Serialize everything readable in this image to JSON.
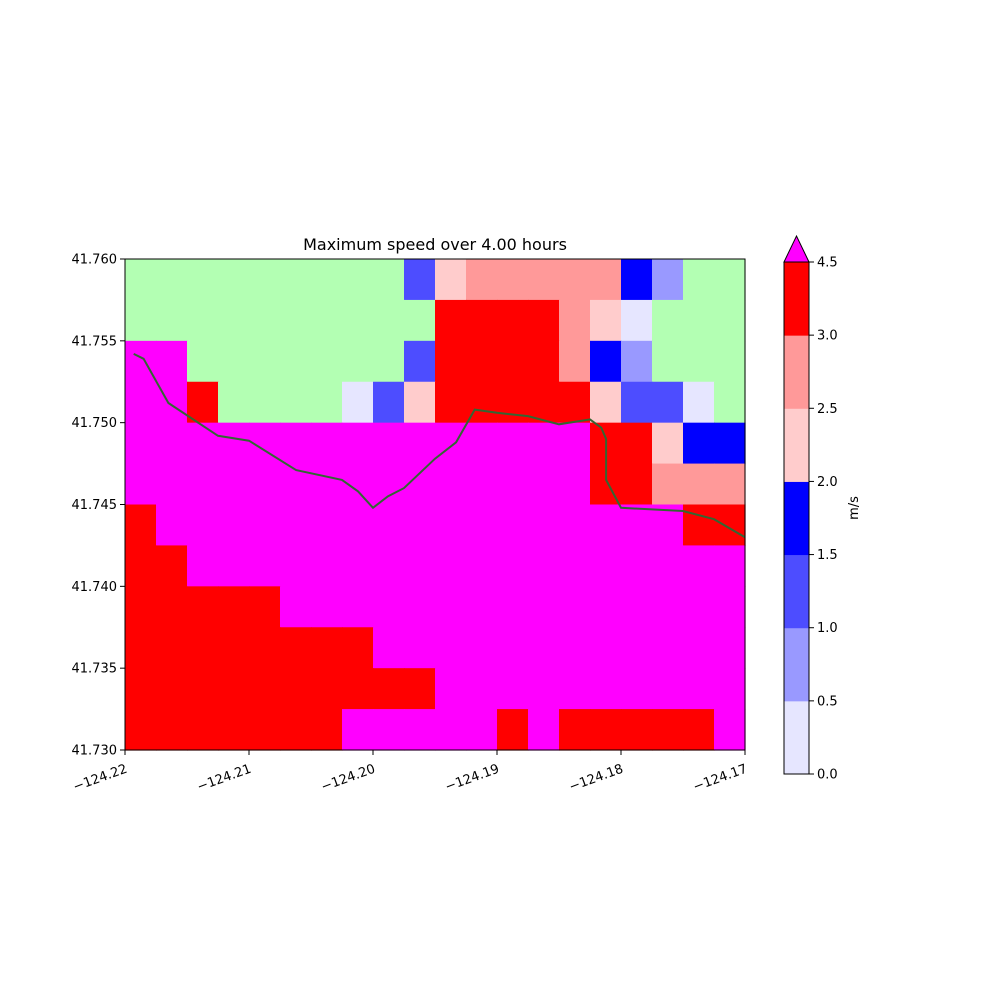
{
  "chart_data": {
    "type": "heatmap",
    "title": "Maximum speed over 4.00 hours",
    "xlabel": "",
    "ylabel": "",
    "xlim": [
      -124.22,
      -124.17
    ],
    "ylim": [
      41.73,
      41.76
    ],
    "x_ticks": [
      "−124.22",
      "−124.21",
      "−124.20",
      "−124.19",
      "−124.18",
      "−124.17"
    ],
    "x_tick_values": [
      -124.22,
      -124.21,
      -124.2,
      -124.19,
      -124.18,
      -124.17
    ],
    "y_ticks": [
      "41.730",
      "41.735",
      "41.740",
      "41.745",
      "41.750",
      "41.755",
      "41.760"
    ],
    "y_tick_values": [
      41.73,
      41.735,
      41.74,
      41.745,
      41.75,
      41.755,
      41.76
    ],
    "grid": false,
    "x_edges": [
      -124.22,
      -124.2175,
      -124.215,
      -124.2075,
      -124.2025,
      -124.2,
      -124.195,
      -124.19,
      -124.1875,
      -124.185,
      -124.1825,
      -124.18,
      -124.1775,
      -124.175,
      -124.1725,
      -124.17
    ],
    "y_edges": [
      41.76,
      41.7575,
      41.755,
      41.7525,
      41.75,
      41.7475,
      41.745,
      41.7425,
      41.74,
      41.7375,
      41.735,
      41.7325,
      41.73
    ],
    "grid_cells": [
      [
        "land",
        "land",
        "land",
        "land",
        "land",
        "land",
        "land",
        "land",
        "land",
        "land",
        "land",
        "land",
        "land",
        "land",
        "land",
        "land",
        "land",
        "land",
        "land",
        "land",
        "land",
        "land",
        "land",
        "land",
        "land",
        "land",
        "land",
        "land",
        "land",
        "land",
        "land",
        "land",
        "land",
        "land",
        "land",
        "land",
        "land",
        "land",
        "land",
        "land",
        "land",
        "land",
        "land",
        "land",
        "land",
        "land",
        "land",
        "land",
        "land",
        "land",
        "land",
        "land",
        "land",
        "land",
        "land",
        "land",
        "land",
        "land",
        "land",
        "land",
        "land",
        "land",
        "land",
        "land",
        "land",
        "land",
        "land",
        "land",
        "land",
        "land",
        "land",
        "land",
        "land",
        "land",
        "land",
        "land",
        "land",
        "land",
        "land",
        "land",
        "land",
        "land",
        "land",
        "land",
        "land",
        "land",
        "land",
        "land",
        "land",
        "land",
        "land",
        "land",
        "land",
        "land",
        "land",
        "land",
        "land",
        "land",
        "land",
        "land"
      ]
    ],
    "cells": [
      {
        "row": 0,
        "col_start": 0,
        "col_end": 8,
        "value": "land"
      },
      {
        "row": 0,
        "col": 8,
        "value": 1.25
      },
      {
        "row": 0,
        "col": 9,
        "value": 2.25
      },
      {
        "row": 0,
        "col_start": 10,
        "col_end": 13,
        "value": 2.75
      },
      {
        "row": 0,
        "col": 13,
        "value": 1.75
      },
      {
        "row": 0,
        "col": 14,
        "value": 0.75
      },
      {
        "row": 0,
        "col_start": 15,
        "col_end": 17,
        "value": "land"
      }
    ],
    "grid_x": [
      -124.22,
      -124.215,
      -124.21,
      -124.205,
      -124.2,
      -124.195,
      -124.19,
      -124.185,
      -124.18,
      -124.175,
      -124.17
    ],
    "grid_y": [
      41.76,
      41.755,
      41.75,
      41.745,
      41.74,
      41.735,
      41.73
    ],
    "col_edges": [
      -124.22,
      -124.2175,
      -124.215,
      -124.2125,
      -124.21,
      -124.2075,
      -124.205,
      -124.2025,
      -124.2,
      -124.1975,
      -124.195,
      -124.1925,
      -124.19,
      -124.1875,
      -124.185,
      -124.1825,
      -124.18,
      -124.1775,
      -124.175,
      -124.1725,
      -124.17
    ],
    "row_edges": [
      41.76,
      41.7575,
      41.755,
      41.7525,
      41.75,
      41.7475,
      41.745,
      41.7425,
      41.74,
      41.7375,
      41.735,
      41.7325,
      41.73
    ],
    "values": [
      [
        "L",
        "L",
        "L",
        "L",
        "L",
        "L",
        "L",
        "L",
        "L",
        "L",
        "L",
        "L",
        "L",
        "L",
        "L",
        "L",
        "L",
        "L",
        "L",
        "L"
      ],
      [
        "L",
        "L",
        "L",
        "L",
        "L",
        "L",
        "L",
        "L",
        "L",
        "L",
        "L",
        "L",
        "L",
        "L",
        "L",
        "L",
        "L",
        "L",
        "L",
        "L"
      ],
      [
        "L",
        "L",
        "L",
        "L",
        "L",
        "L",
        "L",
        "L",
        "L",
        "L",
        "L",
        "L",
        "L",
        "L",
        "L",
        "L",
        "L",
        "L",
        "L",
        "L"
      ],
      [
        "L",
        "L",
        "L",
        "L",
        "L",
        "L",
        "L",
        "L",
        "L",
        "L",
        "L",
        "L",
        "L",
        "L",
        "L",
        "L",
        "L",
        "L",
        "L",
        "L"
      ],
      [
        "L",
        "L",
        "L",
        "L",
        "L",
        "L",
        "L",
        "L",
        "L",
        "L",
        "L",
        "L",
        "L",
        "L",
        "L",
        "L",
        "L",
        "L",
        "L",
        "L"
      ],
      [
        "L",
        "L",
        "L",
        "L",
        "L",
        "L",
        "L",
        "L",
        "L",
        "L",
        "L",
        "L",
        "L",
        "L",
        "L",
        "L",
        "L",
        "L",
        "L",
        "L"
      ],
      [
        "L",
        "L",
        "L",
        "L",
        "L",
        "L",
        "L",
        "L",
        "L",
        "L",
        "L",
        "L",
        "L",
        "L",
        "L",
        "L",
        "L",
        "L",
        "L",
        "L"
      ],
      [
        "L",
        "L",
        "L",
        "L",
        "L",
        "L",
        "L",
        "L",
        "L",
        "L",
        "L",
        "L",
        "L",
        "L",
        "L",
        "L",
        "L",
        "L",
        "L",
        "L"
      ],
      [
        "L",
        "L",
        "L",
        "L",
        "L",
        "L",
        "L",
        "L",
        "L",
        "L",
        "L",
        "L",
        "L",
        "L",
        "L",
        "L",
        "L",
        "L",
        "L",
        "L"
      ],
      [
        "L",
        "L",
        "L",
        "L",
        "L",
        "L",
        "L",
        "L",
        "L",
        "L",
        "L",
        "L",
        "L",
        "L",
        "L",
        "L",
        "L",
        "L",
        "L",
        "L"
      ],
      [
        "L",
        "L",
        "L",
        "L",
        "L",
        "L",
        "L",
        "L",
        "L",
        "L",
        "L",
        "L",
        "L",
        "L",
        "L",
        "L",
        "L",
        "L",
        "L",
        "L"
      ],
      [
        "L",
        "L",
        "L",
        "L",
        "L",
        "L",
        "L",
        "L",
        "L",
        "L",
        "L",
        "L",
        "L",
        "L",
        "L",
        "L",
        "L",
        "L",
        "L",
        "L"
      ]
    ],
    "speed_grid": {
      "col_count": 20,
      "row_count": 12,
      "cells": [
        [
          -1,
          -1,
          -1,
          -1,
          -1,
          -1,
          -1,
          -1,
          -1,
          1.25,
          2.25,
          2.75,
          2.75,
          2.75,
          2.75,
          2.75,
          1.75,
          0.75,
          -1,
          -1
        ],
        [
          -1,
          -1,
          -1,
          -1,
          -1,
          -1,
          -1,
          -1,
          -1,
          -1,
          3.75,
          3.75,
          3.75,
          3.75,
          2.75,
          2.25,
          0.25,
          -1,
          -1,
          -1
        ],
        [
          5,
          5,
          -1,
          -1,
          -1,
          -1,
          -1,
          -1,
          -1,
          1.25,
          3.75,
          3.75,
          3.75,
          3.75,
          2.75,
          1.75,
          0.75,
          -1,
          -1,
          -1
        ],
        [
          5,
          5,
          3.75,
          -1,
          -1,
          -1,
          -1,
          0.25,
          1.25,
          2.25,
          3.75,
          3.75,
          3.75,
          3.75,
          3.75,
          2.25,
          1.25,
          1.25,
          0.25,
          -1
        ],
        [
          5,
          5,
          5,
          5,
          5,
          5,
          5,
          5,
          5,
          5,
          5,
          5,
          5,
          5,
          5,
          3.75,
          3.75,
          2.25,
          1.75,
          1.75
        ],
        [
          5,
          5,
          5,
          5,
          5,
          5,
          5,
          5,
          5,
          5,
          5,
          5,
          5,
          5,
          5,
          3.75,
          3.75,
          2.75,
          2.75,
          2.75
        ],
        [
          3.75,
          5,
          5,
          5,
          5,
          5,
          5,
          5,
          5,
          5,
          5,
          5,
          5,
          5,
          5,
          5,
          5,
          5,
          3.75,
          3.75
        ],
        [
          3.75,
          3.75,
          5,
          5,
          5,
          5,
          5,
          5,
          5,
          5,
          5,
          5,
          5,
          5,
          5,
          5,
          5,
          5,
          5,
          5
        ],
        [
          3.75,
          3.75,
          3.75,
          3.75,
          3.75,
          5,
          5,
          5,
          5,
          5,
          5,
          5,
          5,
          5,
          5,
          5,
          5,
          5,
          5,
          5
        ],
        [
          3.75,
          3.75,
          3.75,
          3.75,
          3.75,
          3.75,
          3.75,
          3.75,
          5,
          5,
          5,
          5,
          5,
          5,
          5,
          5,
          5,
          5,
          5,
          5
        ],
        [
          3.75,
          3.75,
          3.75,
          3.75,
          3.75,
          3.75,
          3.75,
          3.75,
          3.75,
          3.75,
          5,
          5,
          5,
          5,
          5,
          5,
          5,
          5,
          5,
          5
        ],
        [
          3.75,
          3.75,
          3.75,
          3.75,
          3.75,
          3.75,
          3.75,
          5,
          5,
          5,
          5,
          5,
          3.75,
          5,
          3.75,
          3.75,
          3.75,
          3.75,
          3.75,
          5
        ]
      ]
    },
    "land_color": "#b3ffb3",
    "overflow_color": "#ff00ff",
    "colorbar": {
      "label": "m/s",
      "tick_labels": [
        "0.0",
        "0.5",
        "1.0",
        "1.5",
        "2.0",
        "2.5",
        "3.0",
        "4.5"
      ],
      "tick_values": [
        0.0,
        0.5,
        1.0,
        1.5,
        2.0,
        2.5,
        3.0,
        4.5
      ],
      "bounds": [
        0.0,
        0.5,
        1.0,
        1.5,
        2.0,
        2.5,
        3.0,
        4.5
      ],
      "colors": [
        "#e6e6ff",
        "#9999ff",
        "#4d4dff",
        "#0000ff",
        "#ffcccc",
        "#ff9999",
        "#ff0000"
      ],
      "extend": "max",
      "extend_color": "#ff00ff"
    },
    "overlay_line": {
      "color": "#336633",
      "points": [
        [
          -124.2193,
          41.7542
        ],
        [
          -124.2185,
          41.7539
        ],
        [
          -124.2165,
          41.7512
        ],
        [
          -124.2125,
          41.7492
        ],
        [
          -124.21,
          41.7489
        ],
        [
          -124.2062,
          41.7471
        ],
        [
          -124.2025,
          41.7465
        ],
        [
          -124.2012,
          41.7458
        ],
        [
          -124.2,
          41.7448
        ],
        [
          -124.1988,
          41.7455
        ],
        [
          -124.1975,
          41.746
        ],
        [
          -124.195,
          41.7478
        ],
        [
          -124.1933,
          41.7488
        ],
        [
          -124.1918,
          41.7508
        ],
        [
          -124.19,
          41.7506
        ],
        [
          -124.1875,
          41.7504
        ],
        [
          -124.185,
          41.7499
        ],
        [
          -124.1825,
          41.7502
        ],
        [
          -124.1816,
          41.7497
        ],
        [
          -124.1812,
          41.749
        ],
        [
          -124.1812,
          41.7465
        ],
        [
          -124.18,
          41.7448
        ],
        [
          -124.175,
          41.7446
        ],
        [
          -124.1725,
          41.7441
        ],
        [
          -124.17,
          41.743
        ]
      ]
    }
  }
}
